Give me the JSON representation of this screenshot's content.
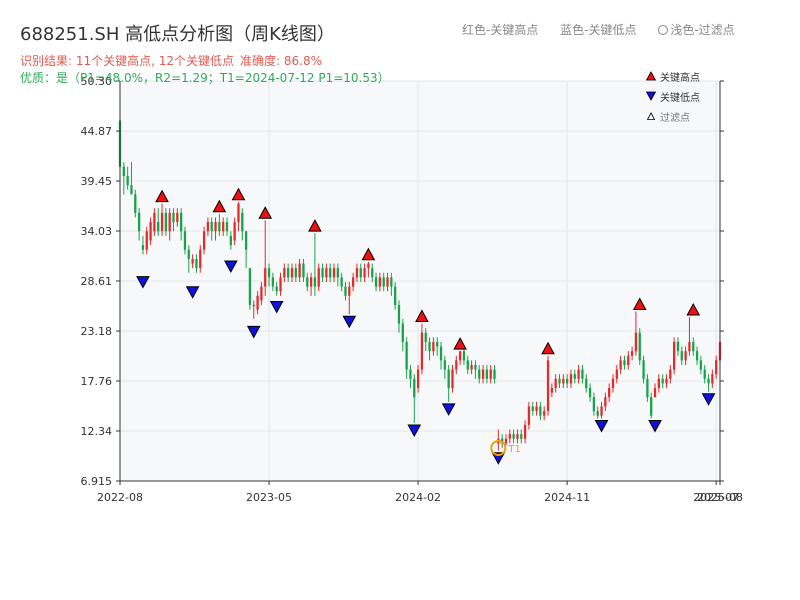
{
  "header": {
    "title": "688251.SH 高低点分析图（周K线图）",
    "legend_text": {
      "red": "红色-关键高点",
      "blue": "蓝色-关键低点",
      "light": "浅色-过滤点"
    },
    "result_prefix": "识别结果: ",
    "result_counts": "11个关键高点, 12个关键低点",
    "accuracy": "准确度: 86.8%",
    "quality": "优质：是（P1=48.0%，R2=1.29；T1=2024-07-12 P1=10.53）"
  },
  "legend": {
    "high": "关键高点",
    "low": "关键低点",
    "filtered": "过滤点"
  },
  "colors": {
    "up": "#e42a2a",
    "down": "#16a34a",
    "high_marker": "#ee1111",
    "low_marker": "#1111dd",
    "highlight": "#f59e0b",
    "grid": "#e3e6ec",
    "plot_bg": "#f7f8fa"
  },
  "chart_data": {
    "type": "candlestick",
    "title": "688251.SH 高低点分析图（周K线图）",
    "y_ticks": [
      "6.915",
      "12.34",
      "17.76",
      "23.18",
      "28.61",
      "34.03",
      "39.45",
      "44.87",
      "50.30"
    ],
    "ylim": [
      6.915,
      50.3
    ],
    "x_ticks": [
      "2022-08",
      "2023-05",
      "2024-02",
      "2024-11",
      "2025-07",
      "2025-08"
    ],
    "x_tick_weeks": [
      0,
      39,
      78,
      117,
      156,
      157
    ],
    "weeks": 158,
    "grid": true,
    "legend_position": "top-right",
    "key_highs": [
      {
        "week": 11,
        "value": 37.0
      },
      {
        "week": 26,
        "value": 35.9
      },
      {
        "week": 31,
        "value": 37.2
      },
      {
        "week": 38,
        "value": 35.2
      },
      {
        "week": 51,
        "value": 33.8
      },
      {
        "week": 65,
        "value": 30.7
      },
      {
        "week": 79,
        "value": 24.0
      },
      {
        "week": 89,
        "value": 21.0
      },
      {
        "week": 112,
        "value": 20.5
      },
      {
        "week": 136,
        "value": 25.3
      },
      {
        "week": 150,
        "value": 24.7
      }
    ],
    "key_lows": [
      {
        "week": 6,
        "value": 29.3
      },
      {
        "week": 19,
        "value": 28.2
      },
      {
        "week": 29,
        "value": 31.0
      },
      {
        "week": 35,
        "value": 23.9
      },
      {
        "week": 41,
        "value": 26.6
      },
      {
        "week": 60,
        "value": 25.0
      },
      {
        "week": 77,
        "value": 13.2
      },
      {
        "week": 86,
        "value": 15.5
      },
      {
        "week": 99,
        "value": 10.2
      },
      {
        "week": 126,
        "value": 13.7
      },
      {
        "week": 140,
        "value": 13.7
      },
      {
        "week": 154,
        "value": 16.6
      }
    ],
    "highlight_point": {
      "week": 99,
      "value": 10.5,
      "label": "T1"
    },
    "candles": [
      [
        46,
        41,
        47,
        40
      ],
      [
        41,
        40,
        41.5,
        38
      ],
      [
        40,
        39,
        41,
        38.5
      ],
      [
        39,
        38,
        41.5,
        38
      ],
      [
        38,
        36,
        38.5,
        35.5
      ],
      [
        36,
        34,
        36.5,
        33
      ],
      [
        32.5,
        32,
        33.5,
        31.5
      ],
      [
        32,
        34,
        34.5,
        31.5
      ],
      [
        33,
        35,
        35.5,
        32.5
      ],
      [
        34,
        36,
        36.5,
        33.5
      ],
      [
        35,
        34,
        36.5,
        33.5
      ],
      [
        34,
        36,
        37,
        33.5
      ],
      [
        36,
        34,
        36.5,
        33.5
      ],
      [
        34,
        36,
        36.5,
        33
      ],
      [
        36,
        35,
        36.5,
        34
      ],
      [
        35,
        36,
        36.5,
        34.5
      ],
      [
        36,
        34,
        36.5,
        33
      ],
      [
        34,
        32,
        34.5,
        31.5
      ],
      [
        32,
        31,
        32.5,
        29.5
      ],
      [
        30.5,
        31,
        31.5,
        30
      ],
      [
        31,
        30,
        31.5,
        29.5
      ],
      [
        30,
        32,
        32.5,
        29.5
      ],
      [
        32,
        34,
        34.5,
        31.5
      ],
      [
        34,
        35,
        35.5,
        33.5
      ],
      [
        35,
        34,
        35.5,
        33
      ],
      [
        34,
        35,
        35.5,
        33
      ],
      [
        35,
        34,
        35.9,
        33.5
      ],
      [
        34,
        35,
        35.5,
        33.5
      ],
      [
        35,
        34,
        35.5,
        33.5
      ],
      [
        33.5,
        32.5,
        34,
        32
      ],
      [
        33,
        35,
        35.5,
        32.5
      ],
      [
        35,
        37,
        37.2,
        34
      ],
      [
        36,
        34,
        36.5,
        33
      ],
      [
        34,
        32,
        34,
        30
      ],
      [
        30,
        26,
        30,
        25.5
      ],
      [
        26,
        26,
        26.5,
        24.5
      ],
      [
        25.5,
        27,
        27.5,
        25
      ],
      [
        26.5,
        28,
        28.5,
        26
      ],
      [
        28,
        30,
        35.2,
        27
      ],
      [
        30,
        29,
        30.5,
        28
      ],
      [
        29,
        28,
        29.5,
        27.5
      ],
      [
        28,
        27.5,
        28.5,
        27
      ],
      [
        27.5,
        29,
        29.5,
        27
      ],
      [
        29,
        30,
        30.5,
        28.5
      ],
      [
        30,
        29,
        30.5,
        28.5
      ],
      [
        29,
        30,
        30.5,
        28.5
      ],
      [
        30,
        29,
        30.5,
        28.5
      ],
      [
        29,
        30.5,
        31,
        28.5
      ],
      [
        30.5,
        29,
        31,
        28.5
      ],
      [
        29,
        28,
        29.5,
        27.5
      ],
      [
        28,
        29,
        29.5,
        27
      ],
      [
        29,
        28,
        33.8,
        27
      ],
      [
        28,
        30,
        30.5,
        27.5
      ],
      [
        30,
        29,
        30.5,
        28.5
      ],
      [
        29,
        30,
        30.5,
        28.5
      ],
      [
        30,
        29,
        30.5,
        28.5
      ],
      [
        29,
        30,
        30.5,
        28.5
      ],
      [
        30,
        29,
        30.5,
        28
      ],
      [
        29,
        28,
        29.5,
        27.5
      ],
      [
        28,
        27,
        28.5,
        26.5
      ],
      [
        27,
        28,
        28.5,
        25
      ],
      [
        28,
        29,
        29.5,
        27.5
      ],
      [
        29,
        30,
        30.5,
        28.5
      ],
      [
        30,
        29,
        30.5,
        28.5
      ],
      [
        29,
        30,
        30.5,
        28.5
      ],
      [
        30,
        30.5,
        30.7,
        29
      ],
      [
        30,
        29,
        30.5,
        28.5
      ],
      [
        29,
        28,
        29.5,
        27.5
      ],
      [
        28,
        29,
        29.5,
        27.5
      ],
      [
        29,
        28,
        29.5,
        27.5
      ],
      [
        28,
        29,
        29.5,
        27.5
      ],
      [
        29,
        28,
        29.5,
        27
      ],
      [
        28,
        26,
        28.5,
        25.5
      ],
      [
        26,
        24,
        26.5,
        23
      ],
      [
        24,
        22,
        24.5,
        21
      ],
      [
        22,
        19,
        22.5,
        18
      ],
      [
        19,
        18,
        19.5,
        17
      ],
      [
        18,
        16,
        18.5,
        13.2
      ],
      [
        17,
        19,
        19.5,
        16.5
      ],
      [
        19,
        23,
        24,
        18.5
      ],
      [
        23,
        22,
        23.5,
        21
      ],
      [
        22,
        21,
        22.5,
        20
      ],
      [
        21,
        22,
        22.5,
        20.5
      ],
      [
        22,
        21.5,
        22.5,
        20.5
      ],
      [
        21.5,
        20,
        22,
        19
      ],
      [
        20,
        19,
        20.5,
        18
      ],
      [
        19,
        17,
        19.5,
        15.5
      ],
      [
        17,
        19,
        19.5,
        16.5
      ],
      [
        19,
        20,
        20.5,
        18.5
      ],
      [
        20,
        21,
        21,
        19.5
      ],
      [
        21,
        20,
        21.5,
        19.5
      ],
      [
        20,
        19,
        20.5,
        18.5
      ],
      [
        19,
        19.5,
        20,
        18.5
      ],
      [
        19.5,
        19,
        20,
        18
      ],
      [
        19,
        18,
        19.5,
        17.5
      ],
      [
        18,
        19,
        19.5,
        17.5
      ],
      [
        19,
        18,
        19.5,
        17.5
      ],
      [
        18,
        19,
        19.5,
        17.5
      ],
      [
        19,
        18,
        19.5,
        17.5
      ],
      [
        11,
        11.5,
        12.5,
        10.2
      ],
      [
        11.5,
        11,
        12,
        10.5
      ],
      [
        11,
        11.5,
        12,
        10.8
      ],
      [
        11.5,
        12,
        12.5,
        11
      ],
      [
        12,
        11.5,
        12.5,
        11
      ],
      [
        11.5,
        12,
        12.5,
        11
      ],
      [
        12,
        11.5,
        12.5,
        11
      ],
      [
        11.5,
        13,
        13.5,
        11
      ],
      [
        13,
        15,
        15.5,
        12.5
      ],
      [
        15,
        14.5,
        15.5,
        14
      ],
      [
        14.5,
        15,
        15.5,
        14
      ],
      [
        15,
        14,
        15.5,
        13.5
      ],
      [
        14,
        14.5,
        15,
        13.5
      ],
      [
        14.5,
        20,
        20.5,
        14
      ],
      [
        16.5,
        17,
        17.5,
        16
      ],
      [
        17,
        18,
        18.5,
        16.5
      ],
      [
        18,
        17.5,
        18.5,
        17
      ],
      [
        17.5,
        18,
        18.5,
        17
      ],
      [
        18,
        17.5,
        18.5,
        17
      ],
      [
        17.5,
        18.5,
        19,
        17
      ],
      [
        18.5,
        18,
        19,
        17.5
      ],
      [
        18,
        19,
        19.5,
        17.5
      ],
      [
        19,
        18,
        19.5,
        17.5
      ],
      [
        18,
        17,
        18.5,
        16.5
      ],
      [
        17,
        16,
        17.5,
        15.5
      ],
      [
        16,
        14.5,
        16.5,
        14
      ],
      [
        14.5,
        14,
        15,
        13.7
      ],
      [
        14,
        15,
        15.5,
        13.7
      ],
      [
        15,
        16,
        16.5,
        14.5
      ],
      [
        16,
        17,
        17.5,
        15.5
      ],
      [
        17,
        18,
        18.5,
        16.5
      ],
      [
        18,
        19,
        19.5,
        17.5
      ],
      [
        19,
        20,
        20.5,
        18.5
      ],
      [
        20,
        19.5,
        20.5,
        19
      ],
      [
        19.5,
        20.5,
        21,
        19
      ],
      [
        20.5,
        21,
        21.5,
        20
      ],
      [
        21,
        23,
        25.3,
        20.5
      ],
      [
        23,
        20,
        23.5,
        19.5
      ],
      [
        20,
        18,
        20.5,
        17.5
      ],
      [
        18,
        16,
        18.5,
        15.5
      ],
      [
        16,
        14,
        16.5,
        13.7
      ],
      [
        16,
        17,
        17.5,
        16
      ],
      [
        17,
        18,
        18.5,
        16.5
      ],
      [
        18,
        17.5,
        18.5,
        17
      ],
      [
        17.5,
        18,
        18.5,
        17
      ],
      [
        18,
        19,
        19.5,
        17.5
      ],
      [
        19,
        22,
        22.5,
        18.5
      ],
      [
        22,
        21,
        22.5,
        20.5
      ],
      [
        21,
        20,
        21.5,
        19.5
      ],
      [
        20,
        21,
        21.5,
        19.5
      ],
      [
        21,
        22,
        24.7,
        20.5
      ],
      [
        22,
        21,
        22.5,
        20.5
      ],
      [
        21,
        20,
        21.5,
        19.5
      ],
      [
        20,
        19,
        20.5,
        18.5
      ],
      [
        19,
        18,
        19.5,
        17.5
      ],
      [
        18,
        17.5,
        18.5,
        16.6
      ],
      [
        17.5,
        18.5,
        19,
        17
      ],
      [
        18.5,
        20,
        20.5,
        18
      ],
      [
        20,
        22,
        23,
        19.5
      ]
    ]
  }
}
